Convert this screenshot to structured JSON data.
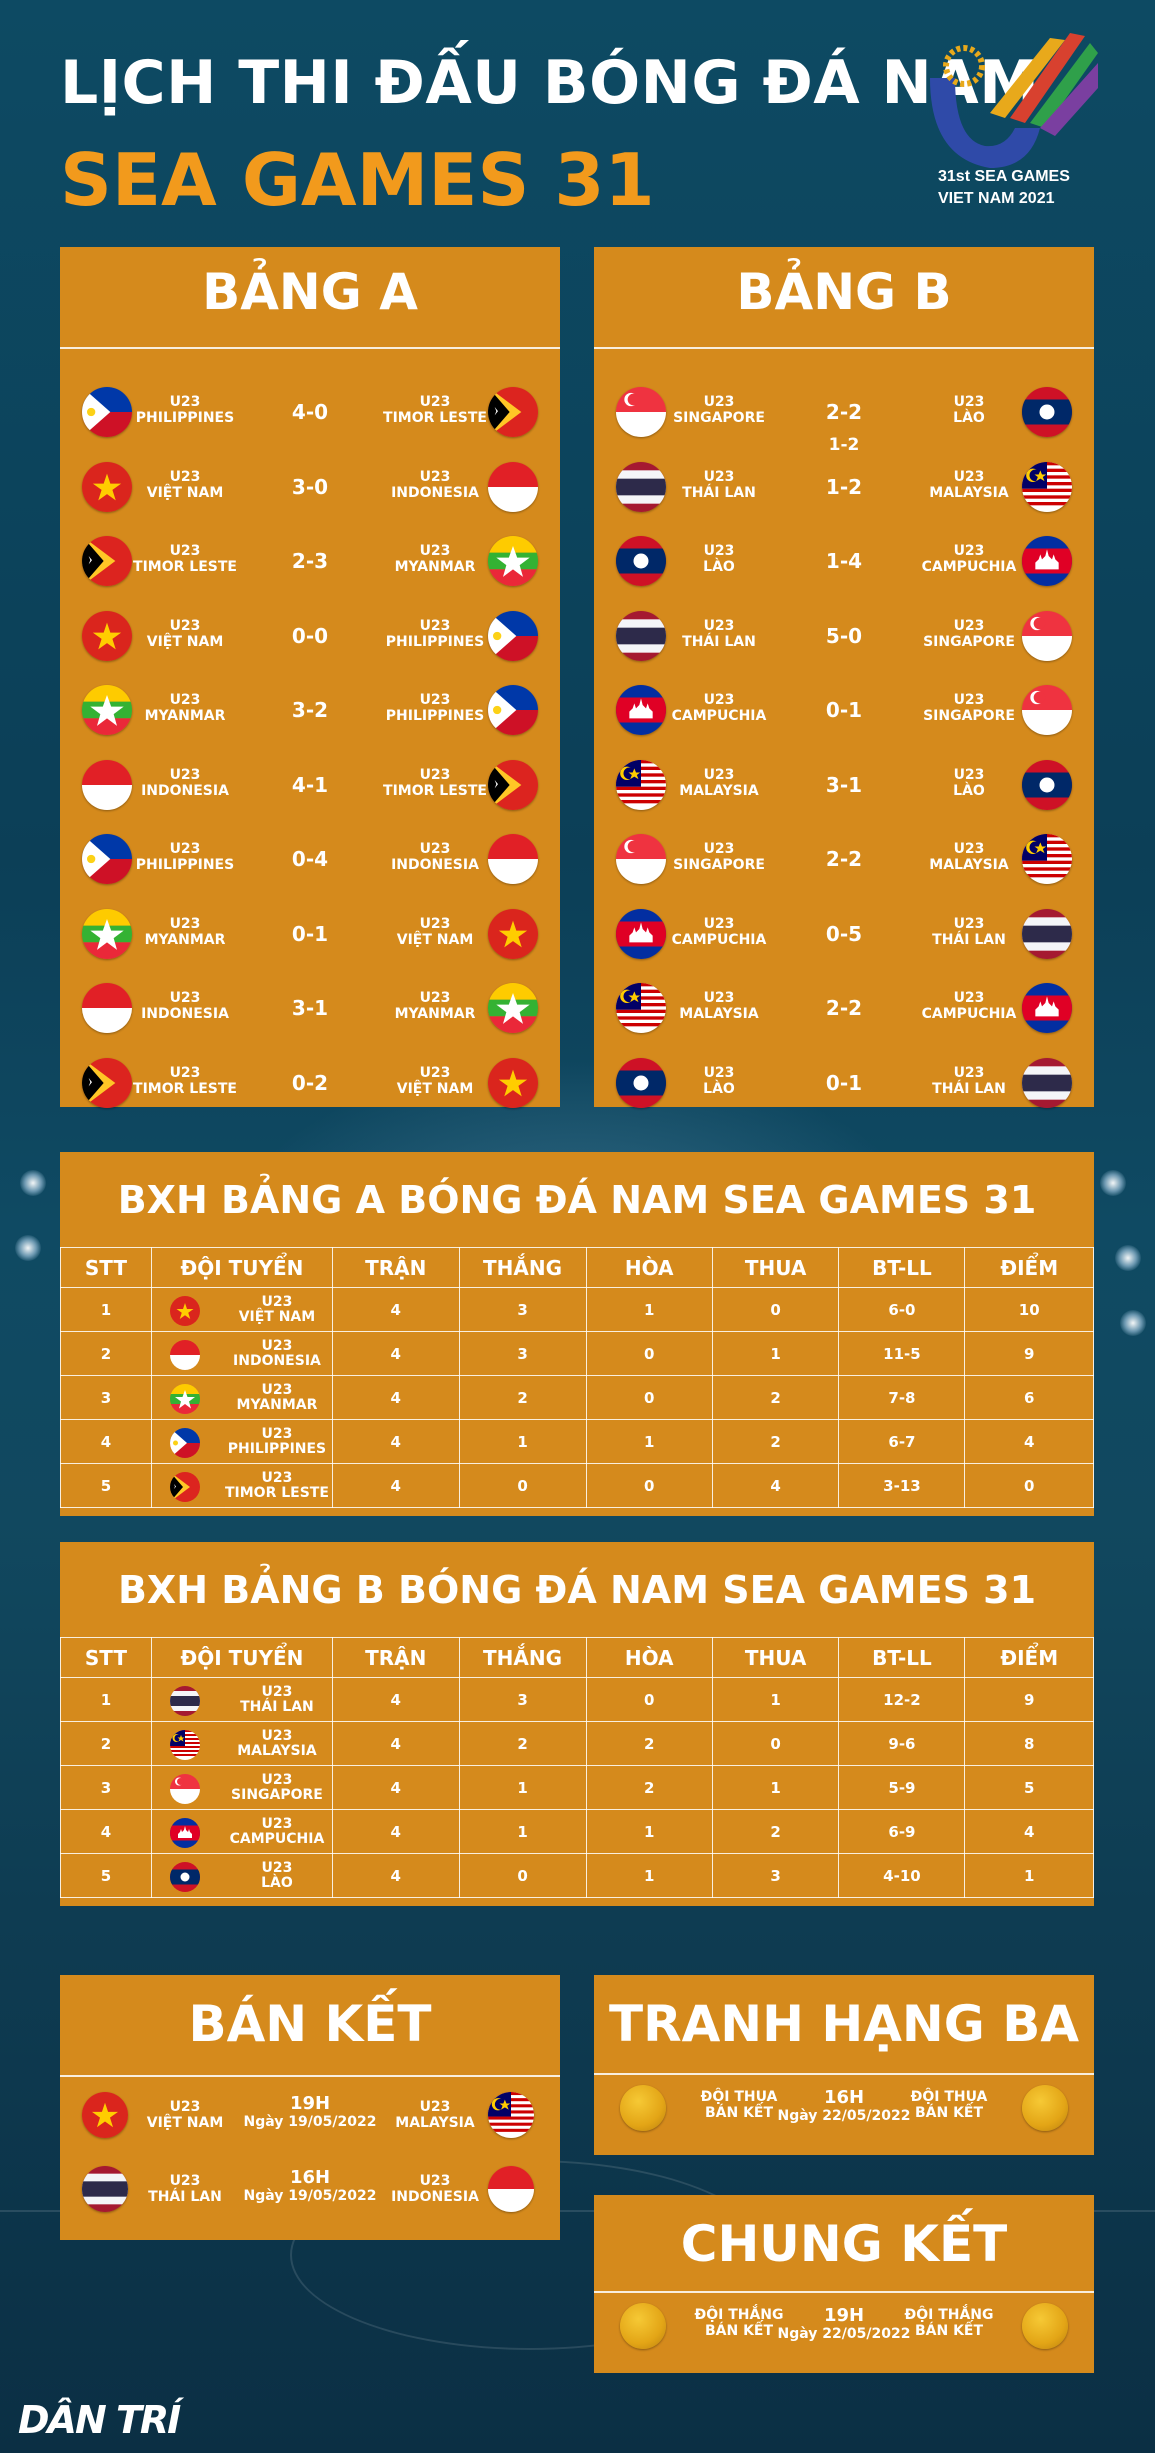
{
  "header": {
    "title_line1": "LỊCH THI ĐẤU BÓNG ĐÁ NAM",
    "title_line2": "SEA GAMES 31",
    "logo_line1": "31st SEA GAMES",
    "logo_line2": "VIET NAM 2021"
  },
  "group_a": {
    "title": "BẢNG A",
    "matches": [
      {
        "home_line1": "U23",
        "home_line2": "PHILIPPINES",
        "home_flag": "philippines",
        "score": "4-0",
        "away_line1": "U23",
        "away_line2": "TIMOR LESTE",
        "away_flag": "timor-leste"
      },
      {
        "home_line1": "U23",
        "home_line2": "VIỆT NAM",
        "home_flag": "vietnam",
        "score": "3-0",
        "away_line1": "U23",
        "away_line2": "INDONESIA",
        "away_flag": "indonesia"
      },
      {
        "home_line1": "U23",
        "home_line2": "TIMOR LESTE",
        "home_flag": "timor-leste",
        "score": "2-3",
        "away_line1": "U23",
        "away_line2": "MYANMAR",
        "away_flag": "myanmar"
      },
      {
        "home_line1": "U23",
        "home_line2": "VIỆT NAM",
        "home_flag": "vietnam",
        "score": "0-0",
        "away_line1": "U23",
        "away_line2": "PHILIPPINES",
        "away_flag": "philippines"
      },
      {
        "home_line1": "U23",
        "home_line2": "MYANMAR",
        "home_flag": "myanmar",
        "score": "3-2",
        "away_line1": "U23",
        "away_line2": "PHILIPPINES",
        "away_flag": "philippines"
      },
      {
        "home_line1": "U23",
        "home_line2": "INDONESIA",
        "home_flag": "indonesia",
        "score": "4-1",
        "away_line1": "U23",
        "away_line2": "TIMOR LESTE",
        "away_flag": "timor-leste"
      },
      {
        "home_line1": "U23",
        "home_line2": "PHILIPPINES",
        "home_flag": "philippines",
        "score": "0-4",
        "away_line1": "U23",
        "away_line2": "INDONESIA",
        "away_flag": "indonesia"
      },
      {
        "home_line1": "U23",
        "home_line2": "MYANMAR",
        "home_flag": "myanmar",
        "score": "0-1",
        "away_line1": "U23",
        "away_line2": "VIỆT NAM",
        "away_flag": "vietnam"
      },
      {
        "home_line1": "U23",
        "home_line2": "INDONESIA",
        "home_flag": "indonesia",
        "score": "3-1",
        "away_line1": "U23",
        "away_line2": "MYANMAR",
        "away_flag": "myanmar"
      },
      {
        "home_line1": "U23",
        "home_line2": "TIMOR LESTE",
        "home_flag": "timor-leste",
        "score": "0-2",
        "away_line1": "U23",
        "away_line2": "VIỆT NAM",
        "away_flag": "vietnam"
      }
    ]
  },
  "group_b": {
    "title": "BẢNG B",
    "extra_score_note": "1-2",
    "matches": [
      {
        "home_line1": "U23",
        "home_line2": "SINGAPORE",
        "home_flag": "singapore",
        "score": "2-2",
        "away_line1": "U23",
        "away_line2": "LÀO",
        "away_flag": "laos"
      },
      {
        "home_line1": "U23",
        "home_line2": "THÁI LAN",
        "home_flag": "thailand",
        "score": "1-2",
        "away_line1": "U23",
        "away_line2": "MALAYSIA",
        "away_flag": "malaysia"
      },
      {
        "home_line1": "U23",
        "home_line2": "LÀO",
        "home_flag": "laos",
        "score": "1-4",
        "away_line1": "U23",
        "away_line2": "CAMPUCHIA",
        "away_flag": "cambodia"
      },
      {
        "home_line1": "U23",
        "home_line2": "THÁI LAN",
        "home_flag": "thailand",
        "score": "5-0",
        "away_line1": "U23",
        "away_line2": "SINGAPORE",
        "away_flag": "singapore"
      },
      {
        "home_line1": "U23",
        "home_line2": "CAMPUCHIA",
        "home_flag": "cambodia",
        "score": "0-1",
        "away_line1": "U23",
        "away_line2": "SINGAPORE",
        "away_flag": "singapore"
      },
      {
        "home_line1": "U23",
        "home_line2": "MALAYSIA",
        "home_flag": "malaysia",
        "score": "3-1",
        "away_line1": "U23",
        "away_line2": "LÀO",
        "away_flag": "laos"
      },
      {
        "home_line1": "U23",
        "home_line2": "SINGAPORE",
        "home_flag": "singapore",
        "score": "2-2",
        "away_line1": "U23",
        "away_line2": "MALAYSIA",
        "away_flag": "malaysia"
      },
      {
        "home_line1": "U23",
        "home_line2": "CAMPUCHIA",
        "home_flag": "cambodia",
        "score": "0-5",
        "away_line1": "U23",
        "away_line2": "THÁI LAN",
        "away_flag": "thailand"
      },
      {
        "home_line1": "U23",
        "home_line2": "MALAYSIA",
        "home_flag": "malaysia",
        "score": "2-2",
        "away_line1": "U23",
        "away_line2": "CAMPUCHIA",
        "away_flag": "cambodia"
      },
      {
        "home_line1": "U23",
        "home_line2": "LÀO",
        "home_flag": "laos",
        "score": "0-1",
        "away_line1": "U23",
        "away_line2": "THÁI LAN",
        "away_flag": "thailand"
      }
    ]
  },
  "standings_a": {
    "title": "BXH BẢNG A BÓNG ĐÁ NAM SEA GAMES 31",
    "headers": [
      "STT",
      "ĐỘI TUYỂN",
      "TRẬN",
      "THẮNG",
      "HÒA",
      "THUA",
      "BT-LL",
      "ĐIỂM"
    ],
    "rows": [
      {
        "stt": "1",
        "team_line1": "U23",
        "team_line2": "VIỆT NAM",
        "flag": "vietnam",
        "played": "4",
        "won": "3",
        "drawn": "1",
        "lost": "0",
        "goals": "6-0",
        "points": "10"
      },
      {
        "stt": "2",
        "team_line1": "U23",
        "team_line2": "INDONESIA",
        "flag": "indonesia",
        "played": "4",
        "won": "3",
        "drawn": "0",
        "lost": "1",
        "goals": "11-5",
        "points": "9"
      },
      {
        "stt": "3",
        "team_line1": "U23",
        "team_line2": "MYANMAR",
        "flag": "myanmar",
        "played": "4",
        "won": "2",
        "drawn": "0",
        "lost": "2",
        "goals": "7-8",
        "points": "6"
      },
      {
        "stt": "4",
        "team_line1": "U23",
        "team_line2": "PHILIPPINES",
        "flag": "philippines",
        "played": "4",
        "won": "1",
        "drawn": "1",
        "lost": "2",
        "goals": "6-7",
        "points": "4"
      },
      {
        "stt": "5",
        "team_line1": "U23",
        "team_line2": "TIMOR LESTE",
        "flag": "timor-leste",
        "played": "4",
        "won": "0",
        "drawn": "0",
        "lost": "4",
        "goals": "3-13",
        "points": "0"
      }
    ]
  },
  "standings_b": {
    "title": "BXH BẢNG B BÓNG ĐÁ NAM SEA GAMES 31",
    "headers": [
      "STT",
      "ĐỘI TUYỂN",
      "TRẬN",
      "THẮNG",
      "HÒA",
      "THUA",
      "BT-LL",
      "ĐIỂM"
    ],
    "rows": [
      {
        "stt": "1",
        "team_line1": "U23",
        "team_line2": "THÁI LAN",
        "flag": "thailand",
        "played": "4",
        "won": "3",
        "drawn": "0",
        "lost": "1",
        "goals": "12-2",
        "points": "9"
      },
      {
        "stt": "2",
        "team_line1": "U23",
        "team_line2": "MALAYSIA",
        "flag": "malaysia",
        "played": "4",
        "won": "2",
        "drawn": "2",
        "lost": "0",
        "goals": "9-6",
        "points": "8"
      },
      {
        "stt": "3",
        "team_line1": "U23",
        "team_line2": "SINGAPORE",
        "flag": "singapore",
        "played": "4",
        "won": "1",
        "drawn": "2",
        "lost": "1",
        "goals": "5-9",
        "points": "5"
      },
      {
        "stt": "4",
        "team_line1": "U23",
        "team_line2": "CAMPUCHIA",
        "flag": "cambodia",
        "played": "4",
        "won": "1",
        "drawn": "1",
        "lost": "2",
        "goals": "6-9",
        "points": "4"
      },
      {
        "stt": "5",
        "team_line1": "U23",
        "team_line2": "LÀO",
        "flag": "laos",
        "played": "4",
        "won": "0",
        "drawn": "1",
        "lost": "3",
        "goals": "4-10",
        "points": "1"
      }
    ]
  },
  "semifinal": {
    "title": "BÁN KẾT",
    "matches": [
      {
        "home_line1": "U23",
        "home_line2": "VIỆT NAM",
        "home_flag": "vietnam",
        "time": "19H",
        "date": "Ngày 19/05/2022",
        "away_line1": "U23",
        "away_line2": "MALAYSIA",
        "away_flag": "malaysia"
      },
      {
        "home_line1": "U23",
        "home_line2": "THÁI LAN",
        "home_flag": "thailand",
        "time": "16H",
        "date": "Ngày 19/05/2022",
        "away_line1": "U23",
        "away_line2": "INDONESIA",
        "away_flag": "indonesia"
      }
    ]
  },
  "third_place": {
    "title": "TRANH HẠNG BA",
    "home_line1": "ĐỘI THUA",
    "home_line2": "BÁN KẾT",
    "time": "16H",
    "date": "Ngày 22/05/2022",
    "away_line1": "ĐỘI THUA",
    "away_line2": "BÁN KẾT"
  },
  "final": {
    "title": "CHUNG KẾT",
    "home_line1": "ĐỘI THẮNG",
    "home_line2": "BÁN KẾT",
    "time": "19H",
    "date": "Ngày 22/05/2022",
    "away_line1": "ĐỘI THẮNG",
    "away_line2": "BÁN KẾT"
  },
  "footer": {
    "brand": "DÂN TRÍ"
  },
  "colors": {
    "panel": "#d58a1c",
    "title_accent": "#f29a1c",
    "background": "#0d4a63"
  }
}
